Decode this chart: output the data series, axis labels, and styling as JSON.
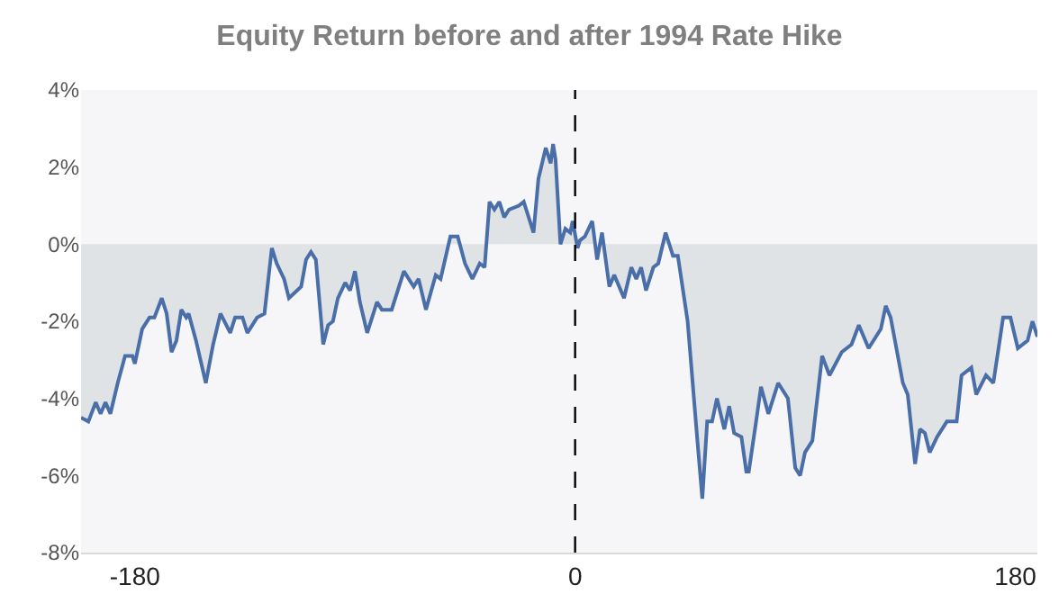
{
  "chart_data": {
    "type": "area",
    "title": "Equity Return before and after 1994 Rate Hike",
    "x": [
      -202,
      -199,
      -196,
      -194,
      -192,
      -190,
      -187,
      -184,
      -181,
      -180,
      -177,
      -174,
      -172,
      -169,
      -167,
      -165,
      -163,
      -161,
      -159,
      -158,
      -155,
      -151,
      -148,
      -145,
      -141,
      -139,
      -136,
      -134,
      -130,
      -127,
      -124,
      -122,
      -119,
      -117,
      -112,
      -110,
      -108,
      -106,
      -103,
      -101,
      -99,
      -97,
      -94,
      -92,
      -90,
      -88,
      -85,
      -81,
      -79,
      -75,
      -72,
      -70,
      -66,
      -64,
      -61,
      -57,
      -55,
      -51,
      -48,
      -45,
      -42,
      -39,
      -37,
      -35,
      -33,
      -31,
      -29,
      -27,
      -23,
      -21,
      -17,
      -15,
      -12,
      -10,
      -9,
      -8,
      -6,
      -4,
      -2,
      -1,
      1,
      2,
      4,
      7,
      9,
      11,
      14,
      16,
      20,
      23,
      25,
      27,
      29,
      32,
      34,
      37,
      40,
      42,
      46,
      50,
      52,
      54,
      56,
      58,
      61,
      63,
      65,
      68,
      70,
      71,
      74,
      76,
      79,
      83,
      87,
      90,
      92,
      94,
      97,
      101,
      104,
      109,
      113,
      116,
      120,
      125,
      127,
      129,
      134,
      136,
      139,
      141,
      143,
      145,
      148,
      152,
      156,
      158,
      162,
      164,
      168,
      171,
      175,
      178,
      181,
      185,
      187,
      189
    ],
    "series": [
      {
        "color": "#4a6fa8",
        "values": [
          -4.5,
          -4.6,
          -4.1,
          -4.4,
          -4.1,
          -4.4,
          -3.6,
          -2.9,
          -2.9,
          -3.1,
          -2.2,
          -1.9,
          -1.9,
          -1.4,
          -1.8,
          -2.8,
          -2.5,
          -1.7,
          -1.9,
          -1.8,
          -2.5,
          -3.6,
          -2.6,
          -1.8,
          -2.3,
          -1.9,
          -1.9,
          -2.3,
          -1.9,
          -1.8,
          -0.1,
          -0.5,
          -0.9,
          -1.4,
          -1.1,
          -0.4,
          -0.2,
          -0.4,
          -2.6,
          -2.1,
          -2.0,
          -1.4,
          -1.0,
          -1.2,
          -0.7,
          -1.5,
          -2.3,
          -1.5,
          -1.7,
          -1.7,
          -1.1,
          -0.7,
          -1.1,
          -0.9,
          -1.7,
          -0.8,
          -0.9,
          0.2,
          0.2,
          -0.5,
          -0.9,
          -0.5,
          -0.6,
          1.1,
          0.9,
          1.1,
          0.7,
          0.9,
          1.0,
          1.1,
          0.3,
          1.7,
          2.5,
          2.1,
          2.6,
          2.2,
          0.0,
          0.4,
          0.3,
          0.6,
          -0.1,
          0.1,
          0.2,
          0.6,
          -0.4,
          0.3,
          -1.1,
          -0.8,
          -1.4,
          -0.6,
          -0.9,
          -0.6,
          -1.2,
          -0.6,
          -0.5,
          0.3,
          -0.3,
          -0.3,
          -2.0,
          -5.1,
          -6.6,
          -4.6,
          -4.6,
          -4.0,
          -4.8,
          -4.2,
          -4.9,
          -5.0,
          -5.9,
          -5.9,
          -4.6,
          -3.7,
          -4.4,
          -3.6,
          -4.0,
          -5.8,
          -6.0,
          -5.4,
          -5.1,
          -2.9,
          -3.4,
          -2.8,
          -2.6,
          -2.1,
          -2.7,
          -2.2,
          -1.6,
          -1.9,
          -3.6,
          -3.9,
          -5.7,
          -4.8,
          -4.9,
          -5.4,
          -5.0,
          -4.6,
          -4.6,
          -3.4,
          -3.2,
          -3.9,
          -3.4,
          -3.6,
          -1.9,
          -1.9,
          -2.7,
          -2.5,
          -2.0,
          -2.4
        ]
      }
    ],
    "xlim": [
      -202,
      189
    ],
    "xticks": [
      -180,
      0,
      180
    ],
    "ylim": [
      -8,
      4
    ],
    "yticks": [
      {
        "value": 4,
        "label": "4%"
      },
      {
        "value": 2,
        "label": "2%"
      },
      {
        "value": 0,
        "label": "0%"
      },
      {
        "value": -2,
        "label": "-2%"
      },
      {
        "value": -4,
        "label": "-4%"
      },
      {
        "value": -6,
        "label": "-6%"
      },
      {
        "value": -8,
        "label": "-8%"
      }
    ],
    "ref_lines": [
      {
        "axis": "x",
        "value": 0,
        "color": "#000000",
        "line_style": "dashed"
      }
    ],
    "grid": false,
    "line_style": "solid"
  }
}
